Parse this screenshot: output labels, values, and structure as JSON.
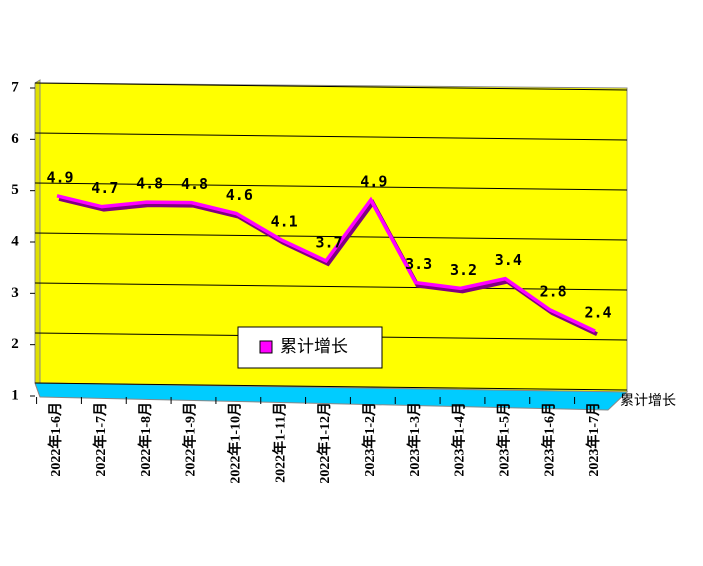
{
  "chart_data": {
    "type": "line",
    "categories": [
      "2022年1-6月",
      "2022年1-7月",
      "2022年1-8月",
      "2022年1-9月",
      "2022年1-10月",
      "2022年1-11月",
      "2022年1-12月",
      "2023年1-2月",
      "2023年1-3月",
      "2023年1-4月",
      "2023年1-5月",
      "2023年1-6月",
      "2023年1-7月"
    ],
    "series": [
      {
        "name": "累计增长",
        "color": "#ff00ff",
        "values": [
          4.9,
          4.7,
          4.8,
          4.8,
          4.6,
          4.1,
          3.7,
          4.9,
          3.3,
          3.2,
          3.4,
          2.8,
          2.4
        ]
      }
    ],
    "ylim": [
      1,
      7
    ],
    "yticks": [
      1,
      2,
      3,
      4,
      5,
      6,
      7
    ],
    "grid": true
  }
}
